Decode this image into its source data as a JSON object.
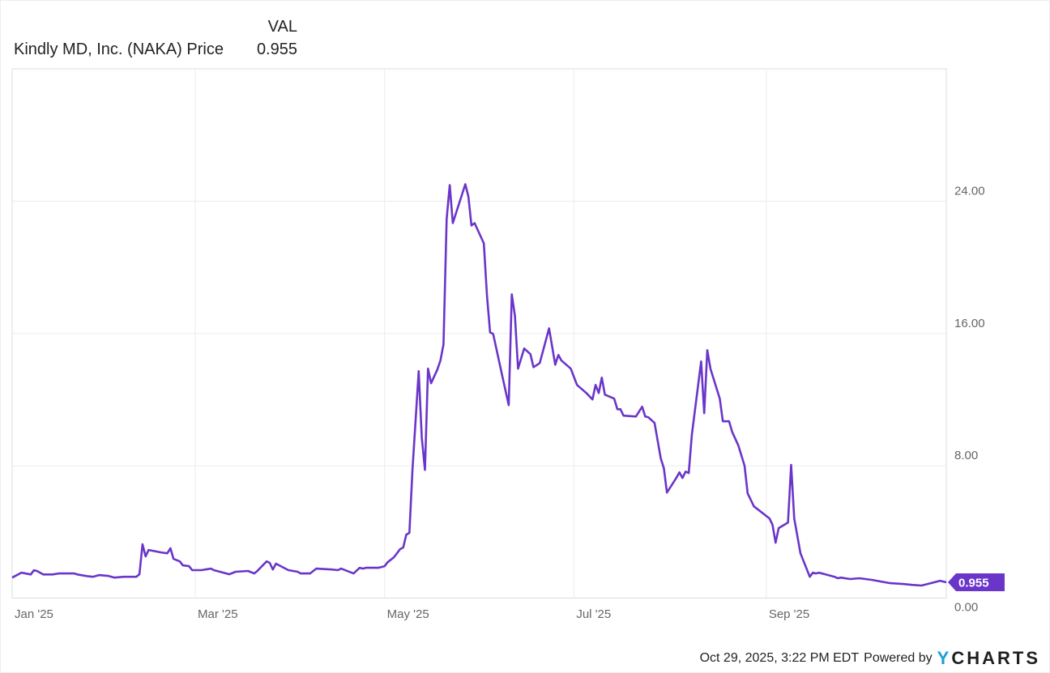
{
  "legend": {
    "header": "VAL",
    "series_name": "Kindly MD, Inc. (NAKA) Price",
    "value": "0.955"
  },
  "footer": {
    "timestamp": "Oct 29, 2025, 3:22 PM EDT",
    "powered_by": "Powered by",
    "logo_y": "Y",
    "logo_rest": "CHARTS"
  },
  "colors": {
    "line": "#6a35c9",
    "grid": "#ececec",
    "axis_text": "#666666",
    "logo_accent": "#1d9fd8"
  },
  "chart_data": {
    "type": "line",
    "title": "",
    "xlabel": "",
    "ylabel": "",
    "xlim": [
      "2025-01-01",
      "2025-10-29"
    ],
    "ylim": [
      0,
      32
    ],
    "grid": true,
    "y_axis_position": "right",
    "x_ticks": [
      {
        "date": "2025-01-01",
        "label": "Jan '25"
      },
      {
        "date": "2025-03-01",
        "label": "Mar '25"
      },
      {
        "date": "2025-05-01",
        "label": "May '25"
      },
      {
        "date": "2025-07-01",
        "label": "Jul '25"
      },
      {
        "date": "2025-09-01",
        "label": "Sep '25"
      }
    ],
    "y_ticks": [
      {
        "value": 0,
        "label": "0.00"
      },
      {
        "value": 8,
        "label": "8.00"
      },
      {
        "value": 16,
        "label": "16.00"
      },
      {
        "value": 24,
        "label": "24.00"
      }
    ],
    "last_value_label": "0.955",
    "series": [
      {
        "name": "Kindly MD, Inc. (NAKA) Price",
        "points": [
          [
            "2025-01-01",
            1.24
          ],
          [
            "2025-01-04",
            1.54
          ],
          [
            "2025-01-07",
            1.43
          ],
          [
            "2025-01-08",
            1.68
          ],
          [
            "2025-01-09",
            1.64
          ],
          [
            "2025-01-11",
            1.43
          ],
          [
            "2025-01-14",
            1.43
          ],
          [
            "2025-01-16",
            1.49
          ],
          [
            "2025-01-21",
            1.49
          ],
          [
            "2025-01-22",
            1.43
          ],
          [
            "2025-01-25",
            1.33
          ],
          [
            "2025-01-27",
            1.29
          ],
          [
            "2025-01-29",
            1.39
          ],
          [
            "2025-02-01",
            1.34
          ],
          [
            "2025-02-03",
            1.24
          ],
          [
            "2025-02-06",
            1.29
          ],
          [
            "2025-02-10",
            1.29
          ],
          [
            "2025-02-11",
            1.44
          ],
          [
            "2025-02-12",
            3.25
          ],
          [
            "2025-02-13",
            2.52
          ],
          [
            "2025-02-14",
            2.91
          ],
          [
            "2025-02-18",
            2.76
          ],
          [
            "2025-02-20",
            2.71
          ],
          [
            "2025-02-21",
            3.01
          ],
          [
            "2025-02-22",
            2.37
          ],
          [
            "2025-02-24",
            2.22
          ],
          [
            "2025-02-25",
            1.98
          ],
          [
            "2025-02-27",
            1.93
          ],
          [
            "2025-02-28",
            1.69
          ],
          [
            "2025-03-03",
            1.69
          ],
          [
            "2025-03-06",
            1.78
          ],
          [
            "2025-03-07",
            1.69
          ],
          [
            "2025-03-12",
            1.44
          ],
          [
            "2025-03-14",
            1.59
          ],
          [
            "2025-03-18",
            1.64
          ],
          [
            "2025-03-20",
            1.49
          ],
          [
            "2025-03-21",
            1.64
          ],
          [
            "2025-03-24",
            2.22
          ],
          [
            "2025-03-25",
            2.13
          ],
          [
            "2025-03-26",
            1.73
          ],
          [
            "2025-03-27",
            2.08
          ],
          [
            "2025-03-31",
            1.69
          ],
          [
            "2025-04-03",
            1.59
          ],
          [
            "2025-04-04",
            1.49
          ],
          [
            "2025-04-07",
            1.49
          ],
          [
            "2025-04-09",
            1.78
          ],
          [
            "2025-04-14",
            1.73
          ],
          [
            "2025-04-16",
            1.69
          ],
          [
            "2025-04-17",
            1.78
          ],
          [
            "2025-04-21",
            1.49
          ],
          [
            "2025-04-23",
            1.83
          ],
          [
            "2025-04-24",
            1.78
          ],
          [
            "2025-04-25",
            1.83
          ],
          [
            "2025-04-29",
            1.83
          ],
          [
            "2025-05-01",
            1.93
          ],
          [
            "2025-05-02",
            2.17
          ],
          [
            "2025-05-04",
            2.47
          ],
          [
            "2025-05-06",
            2.96
          ],
          [
            "2025-05-07",
            3.06
          ],
          [
            "2025-05-08",
            3.84
          ],
          [
            "2025-05-09",
            3.94
          ],
          [
            "2025-05-10",
            7.75
          ],
          [
            "2025-05-12",
            13.72
          ],
          [
            "2025-05-13",
            9.71
          ],
          [
            "2025-05-14",
            7.75
          ],
          [
            "2025-05-15",
            13.87
          ],
          [
            "2025-05-16",
            12.99
          ],
          [
            "2025-05-18",
            13.82
          ],
          [
            "2025-05-19",
            14.36
          ],
          [
            "2025-05-20",
            15.34
          ],
          [
            "2025-05-21",
            22.92
          ],
          [
            "2025-05-22",
            24.97
          ],
          [
            "2025-05-23",
            22.67
          ],
          [
            "2025-05-27",
            25.02
          ],
          [
            "2025-05-28",
            24.29
          ],
          [
            "2025-05-29",
            22.53
          ],
          [
            "2025-05-30",
            22.67
          ],
          [
            "2025-06-02",
            21.45
          ],
          [
            "2025-06-03",
            18.27
          ],
          [
            "2025-06-04",
            16.07
          ],
          [
            "2025-06-05",
            15.97
          ],
          [
            "2025-06-08",
            13.38
          ],
          [
            "2025-06-10",
            11.67
          ],
          [
            "2025-06-11",
            18.37
          ],
          [
            "2025-06-12",
            17.05
          ],
          [
            "2025-06-13",
            13.87
          ],
          [
            "2025-06-15",
            15.09
          ],
          [
            "2025-06-17",
            14.75
          ],
          [
            "2025-06-18",
            13.96
          ],
          [
            "2025-06-20",
            14.21
          ],
          [
            "2025-06-23",
            16.31
          ],
          [
            "2025-06-25",
            14.11
          ],
          [
            "2025-06-26",
            14.7
          ],
          [
            "2025-06-27",
            14.36
          ],
          [
            "2025-06-30",
            13.87
          ],
          [
            "2025-07-02",
            12.89
          ],
          [
            "2025-07-05",
            12.4
          ],
          [
            "2025-07-07",
            12.01
          ],
          [
            "2025-07-08",
            12.89
          ],
          [
            "2025-07-09",
            12.4
          ],
          [
            "2025-07-10",
            13.33
          ],
          [
            "2025-07-11",
            12.3
          ],
          [
            "2025-07-14",
            12.06
          ],
          [
            "2025-07-15",
            11.42
          ],
          [
            "2025-07-16",
            11.42
          ],
          [
            "2025-07-17",
            11.03
          ],
          [
            "2025-07-21",
            10.98
          ],
          [
            "2025-07-23",
            11.57
          ],
          [
            "2025-07-24",
            10.98
          ],
          [
            "2025-07-25",
            10.93
          ],
          [
            "2025-07-27",
            10.59
          ],
          [
            "2025-07-29",
            8.44
          ],
          [
            "2025-07-30",
            7.85
          ],
          [
            "2025-07-31",
            6.38
          ],
          [
            "2025-08-03",
            7.26
          ],
          [
            "2025-08-04",
            7.6
          ],
          [
            "2025-08-05",
            7.26
          ],
          [
            "2025-08-06",
            7.65
          ],
          [
            "2025-08-07",
            7.56
          ],
          [
            "2025-08-08",
            9.86
          ],
          [
            "2025-08-11",
            14.31
          ],
          [
            "2025-08-12",
            11.18
          ],
          [
            "2025-08-13",
            14.99
          ],
          [
            "2025-08-14",
            13.87
          ],
          [
            "2025-08-17",
            12.06
          ],
          [
            "2025-08-18",
            10.69
          ],
          [
            "2025-08-20",
            10.69
          ],
          [
            "2025-08-21",
            10.05
          ],
          [
            "2025-08-23",
            9.22
          ],
          [
            "2025-08-25",
            8.0
          ],
          [
            "2025-08-26",
            6.33
          ],
          [
            "2025-08-28",
            5.55
          ],
          [
            "2025-09-02",
            4.82
          ],
          [
            "2025-09-03",
            4.43
          ],
          [
            "2025-09-04",
            3.35
          ],
          [
            "2025-09-05",
            4.23
          ],
          [
            "2025-09-08",
            4.57
          ],
          [
            "2025-09-09",
            8.05
          ],
          [
            "2025-09-10",
            4.82
          ],
          [
            "2025-09-12",
            2.71
          ],
          [
            "2025-09-15",
            1.29
          ],
          [
            "2025-09-16",
            1.54
          ],
          [
            "2025-09-17",
            1.49
          ],
          [
            "2025-09-18",
            1.54
          ],
          [
            "2025-09-23",
            1.29
          ],
          [
            "2025-09-24",
            1.2
          ],
          [
            "2025-09-25",
            1.24
          ],
          [
            "2025-09-28",
            1.15
          ],
          [
            "2025-10-01",
            1.2
          ],
          [
            "2025-10-05",
            1.1
          ],
          [
            "2025-10-08",
            1.0
          ],
          [
            "2025-10-11",
            0.9
          ],
          [
            "2025-10-15",
            0.85
          ],
          [
            "2025-10-18",
            0.8
          ],
          [
            "2025-10-21",
            0.76
          ],
          [
            "2025-10-24",
            0.9
          ],
          [
            "2025-10-27",
            1.05
          ],
          [
            "2025-10-29",
            0.955
          ]
        ]
      }
    ]
  }
}
